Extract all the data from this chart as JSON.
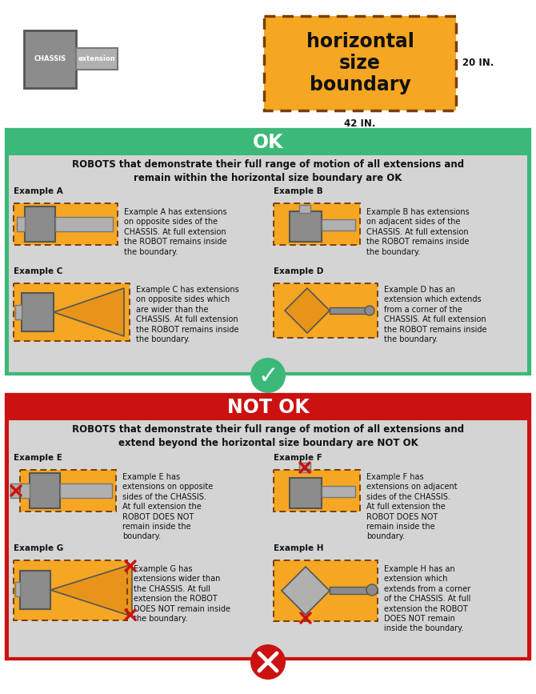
{
  "bg_color": "#ffffff",
  "orange": "#F5A623",
  "orange_dark": "#E8941A",
  "gray_chassis": "#8C8C8C",
  "gray_light": "#B0B0B0",
  "gray_bg": "#D4D4D4",
  "green_header": "#3CB878",
  "red_header": "#CC1111",
  "dark_text": "#1a1a1a",
  "dashed_border": "#7B3F00",
  "ok_header": "OK",
  "notok_header": "NOT OK",
  "ok_subtitle": "ROBOTS that demonstrate their full range of motion of all extensions and\nremain within the horizontal size boundary are OK",
  "notok_subtitle": "ROBOTS that demonstrate their full range of motion of all extensions and\nextend beyond the horizontal size boundary are NOT OK",
  "dim_42": "42 IN.",
  "dim_20": "20 IN."
}
